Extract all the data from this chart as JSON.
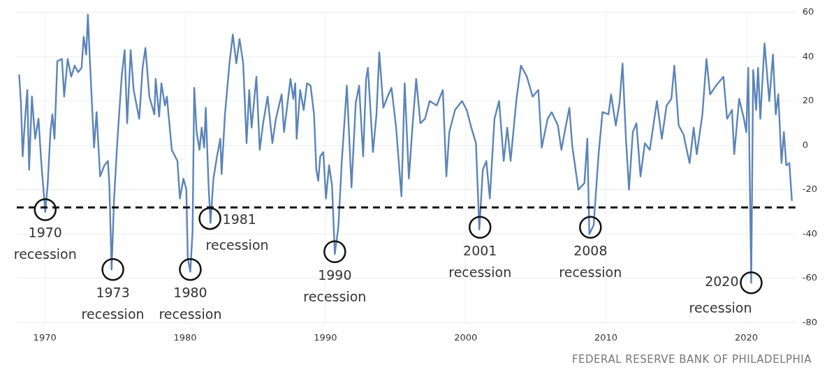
{
  "chart_data": {
    "type": "line",
    "x": [
      1968.17,
      1968.3,
      1968.42,
      1968.57,
      1968.75,
      1968.88,
      1969.08,
      1969.31,
      1969.55,
      1969.74,
      1970.03,
      1970.2,
      1970.4,
      1970.54,
      1970.69,
      1970.89,
      1971.22,
      1971.38,
      1971.63,
      1971.88,
      1972.13,
      1972.37,
      1972.62,
      1972.77,
      1972.95,
      1973.07,
      1973.2,
      1973.51,
      1973.69,
      1973.94,
      1974.25,
      1974.5,
      1974.6,
      1974.76,
      1974.93,
      1975.18,
      1975.49,
      1975.69,
      1975.87,
      1976.12,
      1976.33,
      1976.73,
      1976.97,
      1977.17,
      1977.45,
      1977.81,
      1977.9,
      1978.15,
      1978.31,
      1978.56,
      1978.7,
      1979.05,
      1979.45,
      1979.63,
      1979.88,
      1980.09,
      1980.19,
      1980.37,
      1980.53,
      1980.65,
      1980.82,
      1981.03,
      1981.18,
      1981.36,
      1981.47,
      1981.67,
      1981.81,
      1982.02,
      1982.27,
      1982.51,
      1982.6,
      1982.84,
      1983.16,
      1983.4,
      1983.65,
      1983.88,
      1984.14,
      1984.38,
      1984.57,
      1984.74,
      1985.08,
      1985.32,
      1985.56,
      1985.88,
      1986.22,
      1986.47,
      1986.88,
      1987.05,
      1987.51,
      1987.71,
      1987.85,
      1987.95,
      1988.2,
      1988.45,
      1988.69,
      1988.94,
      1989.19,
      1989.35,
      1989.49,
      1989.63,
      1989.85,
      1990.04,
      1990.26,
      1990.47,
      1990.67,
      1990.92,
      1991.17,
      1991.53,
      1991.86,
      1992.16,
      1992.4,
      1992.69,
      1992.9,
      1993.03,
      1993.39,
      1993.64,
      1993.84,
      1994.13,
      1994.43,
      1994.71,
      1995.04,
      1995.42,
      1995.65,
      1995.95,
      1996.2,
      1996.47,
      1996.77,
      1997.1,
      1997.43,
      1997.93,
      1998.37,
      1998.62,
      1998.83,
      1999.24,
      1999.74,
      2000.07,
      2000.4,
      2000.73,
      2000.97,
      2001.22,
      2001.47,
      2001.72,
      2002.05,
      2002.38,
      2002.71,
      2002.96,
      2003.2,
      2003.62,
      2003.94,
      2004.36,
      2004.77,
      2005.18,
      2005.42,
      2005.84,
      2006.13,
      2006.57,
      2006.82,
      2007.08,
      2007.39,
      2007.59,
      2008.03,
      2008.46,
      2008.67,
      2008.81,
      2009.12,
      2009.47,
      2009.75,
      2010.18,
      2010.36,
      2010.7,
      2010.96,
      2011.18,
      2011.42,
      2011.64,
      2011.91,
      2012.17,
      2012.46,
      2012.77,
      2013.12,
      2013.63,
      2013.98,
      2014.32,
      2014.66,
      2014.87,
      2015.18,
      2015.52,
      2015.96,
      2016.25,
      2016.47,
      2016.87,
      2017.16,
      2017.42,
      2017.85,
      2018.37,
      2018.63,
      2018.98,
      2019.14,
      2019.49,
      2019.83,
      2020.0,
      2020.14,
      2020.35,
      2020.49,
      2020.7,
      2020.84,
      2021.0,
      2021.3,
      2021.64,
      2021.9,
      2022.1,
      2022.28,
      2022.51,
      2022.68,
      2022.85,
      2023.07,
      2023.25
    ],
    "values": [
      32,
      19,
      -5,
      10,
      25,
      -11,
      22,
      3,
      12,
      -7,
      -30,
      -18,
      6,
      14,
      3,
      38,
      39,
      22,
      39,
      31,
      36,
      33,
      35,
      49,
      41,
      59,
      40,
      -1,
      15,
      -14,
      -9,
      -7,
      -18,
      -56,
      -25,
      3,
      32,
      43,
      10,
      43,
      25,
      12,
      35,
      44,
      22,
      14,
      30,
      13,
      28,
      18,
      22,
      -2,
      -7,
      -24,
      -15,
      -20,
      -51,
      -57,
      -39,
      26,
      6,
      -2,
      8,
      -1,
      17,
      -18,
      -35,
      -15,
      -5,
      3,
      -13,
      14,
      37,
      50,
      37,
      48,
      37,
      1,
      25,
      8,
      31,
      -2,
      10,
      22,
      1,
      12,
      23,
      6,
      30,
      21,
      28,
      3,
      25,
      16,
      28,
      27,
      14,
      -11,
      -16,
      -5,
      -3,
      -24,
      -9,
      -18,
      -49,
      -37,
      -7,
      27,
      -19,
      19,
      27,
      -5,
      30,
      35,
      -3,
      14,
      42,
      17,
      22,
      26,
      8,
      -23,
      28,
      -15,
      8,
      30,
      10,
      12,
      20,
      18,
      25,
      -14,
      6,
      16,
      20,
      16,
      8,
      1,
      -38,
      -11,
      -7,
      -24,
      12,
      20,
      -7,
      8,
      -7,
      21,
      36,
      31,
      22,
      25,
      -1,
      12,
      15,
      9,
      -2,
      7,
      17,
      0,
      -20,
      -17,
      3,
      -40,
      -36,
      -4,
      15,
      14,
      23,
      9,
      19,
      37,
      3,
      -20,
      6,
      10,
      -14,
      1,
      -2,
      20,
      3,
      18,
      21,
      36,
      9,
      5,
      -8,
      8,
      -4,
      14,
      39,
      23,
      27,
      31,
      12,
      16,
      -4,
      21,
      12,
      6,
      35,
      -62,
      34,
      16,
      35,
      12,
      46,
      20,
      41,
      14,
      23,
      -8,
      6,
      -9,
      -8,
      -25
    ],
    "color": "#5b84b8",
    "xlim": [
      1968,
      2023.5
    ],
    "xticks": [
      1970,
      1980,
      1990,
      2000,
      2010,
      2020
    ],
    "ylim": [
      -80,
      60
    ],
    "yticks": [
      -80,
      -60,
      -40,
      -20,
      0,
      20,
      40,
      60
    ],
    "grid": true,
    "ref_lines": [
      {
        "axis": "y",
        "value": -28,
        "line_style": "dashed",
        "color": "#111111"
      }
    ],
    "annotations": [
      {
        "text": "1970 recession",
        "x": 1970.03,
        "y": -29
      },
      {
        "text": "1973 recession",
        "x": 1974.85,
        "y": -56
      },
      {
        "text": "1980 recession",
        "x": 1980.37,
        "y": -56
      },
      {
        "text": "1981 recession",
        "x": 1981.77,
        "y": -33
      },
      {
        "text": "1990 recession",
        "x": 1990.67,
        "y": -48
      },
      {
        "text": "2001 recession",
        "x": 2001.02,
        "y": -37
      },
      {
        "text": "2008 recession",
        "x": 2008.89,
        "y": -37
      },
      {
        "text": "2020 recession",
        "x": 2020.35,
        "y": -62
      },
      "FEDERAL RESERVE BANK OF PHILADELPHIA"
    ]
  }
}
